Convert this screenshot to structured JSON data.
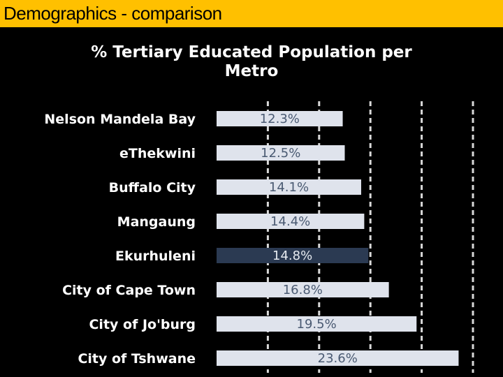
{
  "slide": {
    "title": "Demographics - comparison"
  },
  "chart_data": {
    "type": "bar",
    "orientation": "horizontal",
    "title": "% Tertiary Educated Population per Metro",
    "categories": [
      "Nelson Mandela Bay",
      "eThekwini",
      "Buffalo City",
      "Mangaung",
      "Ekurhuleni",
      "City of Cape Town",
      "City of Jo'burg",
      "City of Tshwane"
    ],
    "values": [
      12.3,
      12.5,
      14.1,
      14.4,
      14.8,
      16.8,
      19.5,
      23.6
    ],
    "data_labels": [
      "12.3%",
      "12.5%",
      "14.1%",
      "14.4%",
      "14.8%",
      "16.8%",
      "19.5%",
      "23.6%"
    ],
    "highlight_category": "Ekurhuleni",
    "gridlines": [
      5,
      10,
      15,
      20,
      25
    ],
    "xlim": [
      0,
      25
    ],
    "grid": true,
    "legend": "none",
    "colors": {
      "bar": "#dfe3ec",
      "highlight_bar": "#2b3a52",
      "bar_label": "#4a5a72",
      "highlight_label": "#e6eaf0",
      "gridline": "#d9d9d9",
      "header_background": "#ffc000"
    }
  }
}
